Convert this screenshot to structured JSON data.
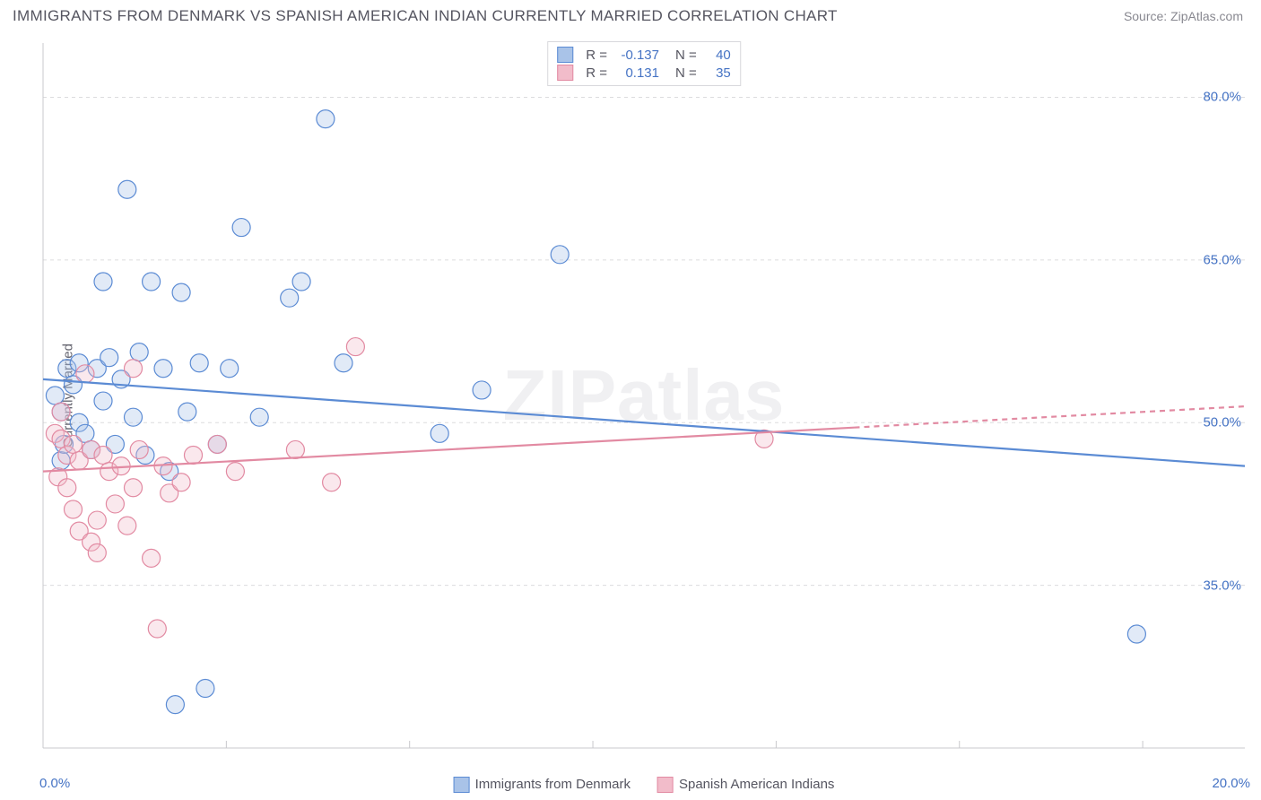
{
  "header": {
    "title": "IMMIGRANTS FROM DENMARK VS SPANISH AMERICAN INDIAN CURRENTLY MARRIED CORRELATION CHART",
    "source": "Source: ZipAtlas.com"
  },
  "watermark": "ZIPatlas",
  "chart": {
    "type": "scatter",
    "background_color": "#ffffff",
    "grid_color": "#dcdcde",
    "grid_dash": "4 4",
    "axis_color": "#c8c8cc",
    "tick_color": "#c8c8cc",
    "ylabel": "Currently Married",
    "ylabel_fontsize": 15,
    "ylabel_color": "#656570",
    "xlim": [
      0,
      20
    ],
    "ylim": [
      20,
      85
    ],
    "yticks": [
      35,
      50,
      65,
      80
    ],
    "ytick_labels": [
      "35.0%",
      "50.0%",
      "65.0%",
      "80.0%"
    ],
    "ytick_color": "#4573c4",
    "xtick_positions": [
      0,
      3.05,
      6.1,
      9.15,
      12.2,
      15.25,
      18.3
    ],
    "xtick_labels_shown": {
      "0": "0.0%",
      "20": "20.0%"
    },
    "xtick_color": "#4573c4",
    "marker_radius": 10,
    "marker_stroke_width": 1.2,
    "marker_fill_opacity": 0.35,
    "line_width": 2.2,
    "series": [
      {
        "name": "Immigrants from Denmark",
        "color_stroke": "#5b8bd4",
        "color_fill": "#a9c3e8",
        "R": "-0.137",
        "N": "40",
        "regression": {
          "x1": 0,
          "y1": 54.0,
          "x2": 20,
          "y2": 46.0
        },
        "regression_dash_from_x": null,
        "points": [
          [
            0.2,
            52.5
          ],
          [
            0.3,
            46.5
          ],
          [
            0.3,
            51.0
          ],
          [
            0.35,
            48.0
          ],
          [
            0.4,
            55.0
          ],
          [
            0.5,
            53.5
          ],
          [
            0.6,
            50.0
          ],
          [
            0.6,
            55.5
          ],
          [
            0.7,
            49.0
          ],
          [
            0.8,
            47.5
          ],
          [
            0.9,
            55.0
          ],
          [
            1.0,
            52.0
          ],
          [
            1.0,
            63.0
          ],
          [
            1.1,
            56.0
          ],
          [
            1.2,
            48.0
          ],
          [
            1.3,
            54.0
          ],
          [
            1.4,
            71.5
          ],
          [
            1.5,
            50.5
          ],
          [
            1.6,
            56.5
          ],
          [
            1.7,
            47.0
          ],
          [
            1.8,
            63.0
          ],
          [
            2.0,
            55.0
          ],
          [
            2.1,
            45.5
          ],
          [
            2.2,
            24.0
          ],
          [
            2.3,
            62.0
          ],
          [
            2.4,
            51.0
          ],
          [
            2.6,
            55.5
          ],
          [
            2.7,
            25.5
          ],
          [
            2.9,
            48.0
          ],
          [
            3.1,
            55.0
          ],
          [
            3.3,
            68.0
          ],
          [
            3.6,
            50.5
          ],
          [
            4.1,
            61.5
          ],
          [
            4.3,
            63.0
          ],
          [
            4.7,
            78.0
          ],
          [
            5.0,
            55.5
          ],
          [
            6.6,
            49.0
          ],
          [
            7.3,
            53.0
          ],
          [
            8.6,
            65.5
          ],
          [
            18.2,
            30.5
          ]
        ]
      },
      {
        "name": "Spanish American Indians",
        "color_stroke": "#e28aa2",
        "color_fill": "#f2bcca",
        "R": "0.131",
        "N": "35",
        "regression": {
          "x1": 0,
          "y1": 45.5,
          "x2": 20,
          "y2": 51.5
        },
        "regression_dash_from_x": 13.5,
        "points": [
          [
            0.2,
            49.0
          ],
          [
            0.25,
            45.0
          ],
          [
            0.3,
            48.5
          ],
          [
            0.3,
            51.0
          ],
          [
            0.4,
            44.0
          ],
          [
            0.4,
            47.0
          ],
          [
            0.5,
            48.0
          ],
          [
            0.5,
            42.0
          ],
          [
            0.6,
            40.0
          ],
          [
            0.6,
            46.5
          ],
          [
            0.7,
            54.5
          ],
          [
            0.8,
            39.0
          ],
          [
            0.8,
            47.5
          ],
          [
            0.9,
            41.0
          ],
          [
            0.9,
            38.0
          ],
          [
            1.0,
            47.0
          ],
          [
            1.1,
            45.5
          ],
          [
            1.2,
            42.5
          ],
          [
            1.3,
            46.0
          ],
          [
            1.4,
            40.5
          ],
          [
            1.5,
            44.0
          ],
          [
            1.5,
            55.0
          ],
          [
            1.6,
            47.5
          ],
          [
            1.8,
            37.5
          ],
          [
            1.9,
            31.0
          ],
          [
            2.0,
            46.0
          ],
          [
            2.1,
            43.5
          ],
          [
            2.3,
            44.5
          ],
          [
            2.5,
            47.0
          ],
          [
            2.9,
            48.0
          ],
          [
            3.2,
            45.5
          ],
          [
            4.2,
            47.5
          ],
          [
            4.8,
            44.5
          ],
          [
            5.2,
            57.0
          ],
          [
            12.0,
            48.5
          ]
        ]
      }
    ],
    "bottom_legend": [
      {
        "label": "Immigrants from Denmark",
        "fill": "#a9c3e8",
        "stroke": "#5b8bd4"
      },
      {
        "label": "Spanish American Indians",
        "fill": "#f2bcca",
        "stroke": "#e28aa2"
      }
    ],
    "top_legend_cols": [
      "R =",
      "N ="
    ]
  }
}
